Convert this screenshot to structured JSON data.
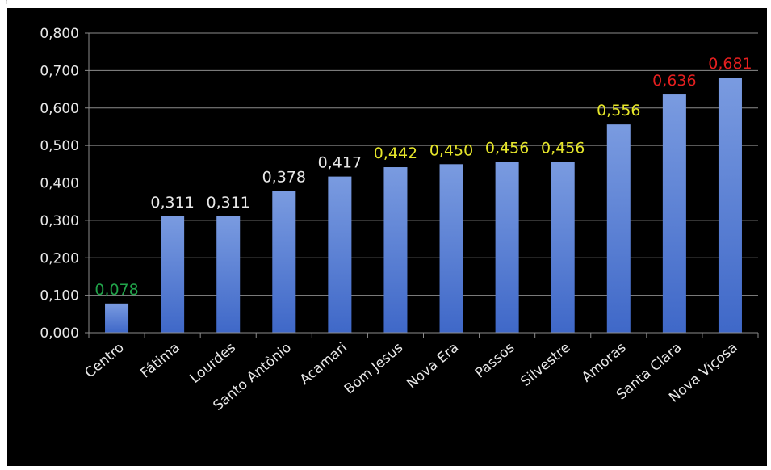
{
  "page": {
    "top_fragment": "r"
  },
  "colors": {
    "background": "#000000",
    "bar_top": "#7a9be0",
    "bar_bottom": "#3f68c8",
    "axis_text": "#e8e8e8",
    "grid": "#8c8c8c",
    "label_white": "#e8e8e8",
    "label_green": "#21a44a",
    "label_yellow": "#e6e62a",
    "label_red": "#e51f1f"
  },
  "chart_data": {
    "type": "bar",
    "title": "",
    "xlabel": "",
    "ylabel": "",
    "ylim": [
      0,
      0.8
    ],
    "yticks": [
      0,
      0.1,
      0.2,
      0.3,
      0.4,
      0.5,
      0.6,
      0.7,
      0.8
    ],
    "ytick_labels": [
      "0,000",
      "0,100",
      "0,200",
      "0,300",
      "0,400",
      "0,500",
      "0,600",
      "0,700",
      "0,800"
    ],
    "grid": true,
    "categories": [
      "Centro",
      "Fátima",
      "Lourdes",
      "Santo Antônio",
      "Acamari",
      "Bom Jesus",
      "Nova Era",
      "Passos",
      "Silvestre",
      "Amoras",
      "Santa Clara",
      "Nova Viçosa"
    ],
    "values": [
      0.078,
      0.311,
      0.311,
      0.378,
      0.417,
      0.442,
      0.45,
      0.456,
      0.456,
      0.556,
      0.636,
      0.681
    ],
    "value_labels": [
      "0,078",
      "0,311",
      "0,311",
      "0,378",
      "0,417",
      "0,442",
      "0,450",
      "0,456",
      "0,456",
      "0,556",
      "0,636",
      "0,681"
    ],
    "value_label_colors": [
      "green",
      "white",
      "white",
      "white",
      "white",
      "yellow",
      "yellow",
      "yellow",
      "yellow",
      "yellow",
      "red",
      "red"
    ]
  }
}
